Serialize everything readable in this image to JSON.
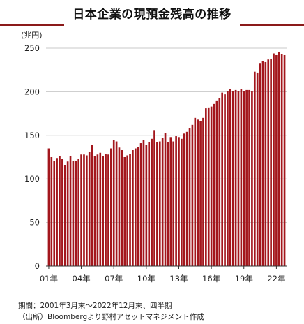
{
  "header": {
    "title": "日本企業の現預金残高の推移"
  },
  "chart_data": {
    "type": "bar",
    "title": "日本企業の現預金残高の推移",
    "ylabel": "(兆円)",
    "xlabel": "",
    "ylim": [
      0,
      250
    ],
    "yticks": [
      0,
      50,
      100,
      150,
      200,
      250
    ],
    "grid": true,
    "bar_color": "#a3161c",
    "x_tick_labels": [
      "01年",
      "04年",
      "07年",
      "10年",
      "13年",
      "16年",
      "19年",
      "22年"
    ],
    "categories": [
      "2001Q1",
      "2001Q2",
      "2001Q3",
      "2001Q4",
      "2002Q1",
      "2002Q2",
      "2002Q3",
      "2002Q4",
      "2003Q1",
      "2003Q2",
      "2003Q3",
      "2003Q4",
      "2004Q1",
      "2004Q2",
      "2004Q3",
      "2004Q4",
      "2005Q1",
      "2005Q2",
      "2005Q3",
      "2005Q4",
      "2006Q1",
      "2006Q2",
      "2006Q3",
      "2006Q4",
      "2007Q1",
      "2007Q2",
      "2007Q3",
      "2007Q4",
      "2008Q1",
      "2008Q2",
      "2008Q3",
      "2008Q4",
      "2009Q1",
      "2009Q2",
      "2009Q3",
      "2009Q4",
      "2010Q1",
      "2010Q2",
      "2010Q3",
      "2010Q4",
      "2011Q1",
      "2011Q2",
      "2011Q3",
      "2011Q4",
      "2012Q1",
      "2012Q2",
      "2012Q3",
      "2012Q4",
      "2013Q1",
      "2013Q2",
      "2013Q3",
      "2013Q4",
      "2014Q1",
      "2014Q2",
      "2014Q3",
      "2014Q4",
      "2015Q1",
      "2015Q2",
      "2015Q3",
      "2015Q4",
      "2016Q1",
      "2016Q2",
      "2016Q3",
      "2016Q4",
      "2017Q1",
      "2017Q2",
      "2017Q3",
      "2017Q4",
      "2018Q1",
      "2018Q2",
      "2018Q3",
      "2018Q4",
      "2019Q1",
      "2019Q2",
      "2019Q3",
      "2019Q4",
      "2020Q1",
      "2020Q2",
      "2020Q3",
      "2020Q4",
      "2021Q1",
      "2021Q2",
      "2021Q3",
      "2021Q4",
      "2022Q1",
      "2022Q2",
      "2022Q3",
      "2022Q4"
    ],
    "values": [
      135,
      125,
      121,
      124,
      126,
      123,
      116,
      120,
      126,
      121,
      121,
      123,
      128,
      128,
      127,
      131,
      139,
      126,
      128,
      130,
      126,
      129,
      128,
      135,
      145,
      143,
      136,
      133,
      125,
      127,
      129,
      133,
      135,
      137,
      141,
      145,
      139,
      142,
      146,
      156,
      142,
      143,
      147,
      153,
      142,
      148,
      143,
      149,
      148,
      146,
      152,
      154,
      158,
      162,
      170,
      168,
      166,
      170,
      181,
      182,
      183,
      186,
      190,
      193,
      199,
      197,
      201,
      203,
      201,
      202,
      201,
      203,
      201,
      202,
      202,
      201,
      223,
      222,
      233,
      235,
      234,
      237,
      238,
      244,
      242,
      246,
      243,
      242
    ]
  },
  "footnotes": {
    "period": "期間：2001年3月末～2022年12月末、四半期",
    "source": "（出所）Bloombergより野村アセットマネジメント作成"
  }
}
